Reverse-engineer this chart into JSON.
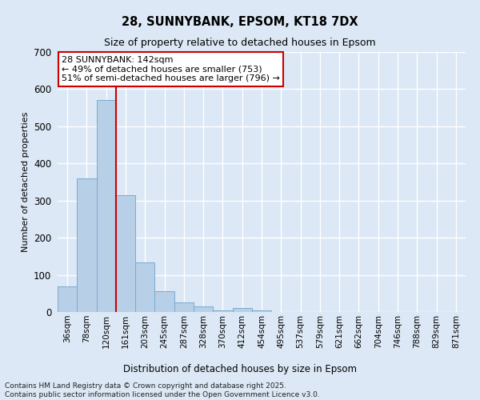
{
  "title1": "28, SUNNYBANK, EPSOM, KT18 7DX",
  "title2": "Size of property relative to detached houses in Epsom",
  "xlabel": "Distribution of detached houses by size in Epsom",
  "ylabel": "Number of detached properties",
  "bar_values": [
    68,
    360,
    570,
    315,
    133,
    57,
    25,
    15,
    5,
    10,
    4,
    0,
    0,
    0,
    0,
    0,
    0,
    0,
    0,
    0,
    0
  ],
  "bar_labels": [
    "36sqm",
    "78sqm",
    "120sqm",
    "161sqm",
    "203sqm",
    "245sqm",
    "287sqm",
    "328sqm",
    "370sqm",
    "412sqm",
    "454sqm",
    "495sqm",
    "537sqm",
    "579sqm",
    "621sqm",
    "662sqm",
    "704sqm",
    "746sqm",
    "788sqm",
    "829sqm",
    "871sqm"
  ],
  "bar_color": "#b8cfe8",
  "bar_edge_color": "#7aaad0",
  "vline_color": "#cc0000",
  "annotation_text": "28 SUNNYBANK: 142sqm\n← 49% of detached houses are smaller (753)\n51% of semi-detached houses are larger (796) →",
  "annotation_box_color": "#ffffff",
  "annotation_box_edge": "#cc0000",
  "background_color": "#dce8f5",
  "ylim": [
    0,
    700
  ],
  "yticks": [
    0,
    100,
    200,
    300,
    400,
    500,
    600,
    700
  ],
  "footer1": "Contains HM Land Registry data © Crown copyright and database right 2025.",
  "footer2": "Contains public sector information licensed under the Open Government Licence v3.0."
}
